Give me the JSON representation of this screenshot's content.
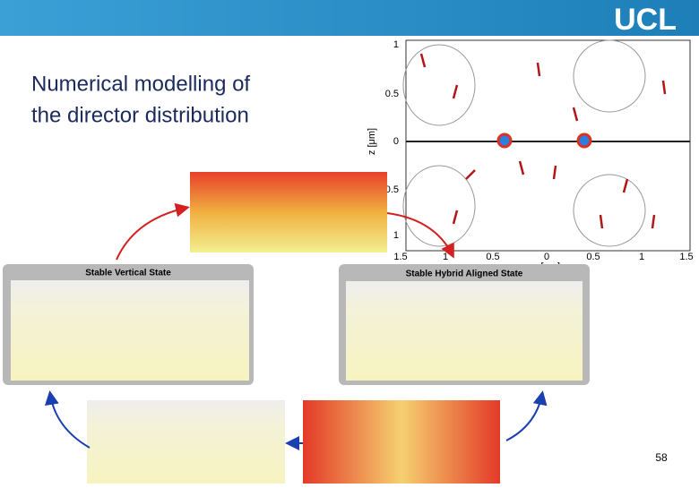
{
  "header": {
    "logo": "UCL"
  },
  "title": {
    "lines": [
      "Numerical modelling of",
      "the director distribution"
    ]
  },
  "figure": {
    "y_label": "z [μm]",
    "x_label": "x [μm]",
    "y_ticks": [
      "1",
      "0.5",
      "0",
      "0.5",
      "1"
    ],
    "x_ticks": [
      "1.5",
      "1",
      "0.5",
      "0",
      "0.5",
      "1",
      "1.5"
    ]
  },
  "panels": {
    "left": "Stable Vertical State",
    "right": "Stable Hybrid Aligned State"
  },
  "page_number": "58"
}
